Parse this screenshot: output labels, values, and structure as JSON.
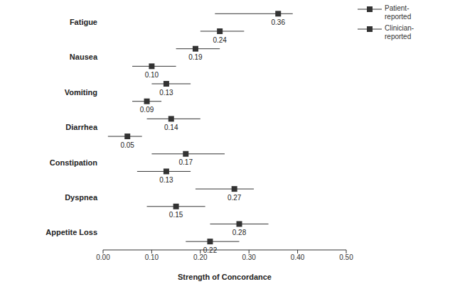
{
  "chart_data": {
    "type": "scatter",
    "xlabel": "Strength of Concordance",
    "categories": [
      "Fatigue",
      "Nausea",
      "Vomiting",
      "Diarrhea",
      "Constipation",
      "Dyspnea",
      "Appetite Loss"
    ],
    "series": [
      {
        "name": "Patient-reported",
        "color": "#333333",
        "marker": "square",
        "values": [
          0.36,
          0.19,
          0.13,
          0.14,
          0.17,
          0.27,
          0.28
        ],
        "value_labels": [
          "0.36",
          "0.19",
          "0.13",
          "0.14",
          "0.17",
          "0.27",
          "0.28"
        ],
        "ci_low": [
          0.23,
          0.15,
          0.1,
          0.09,
          0.1,
          0.19,
          0.22
        ],
        "ci_high": [
          0.39,
          0.24,
          0.18,
          0.2,
          0.25,
          0.31,
          0.34
        ]
      },
      {
        "name": "Clinician-reported",
        "color": "#333333",
        "marker": "square",
        "values": [
          0.24,
          0.1,
          0.09,
          0.05,
          0.13,
          0.15,
          0.22
        ],
        "value_labels": [
          "0.24",
          "0.10",
          "0.09",
          "0.05",
          "0.13",
          "0.15",
          "0.22"
        ],
        "ci_low": [
          0.2,
          0.06,
          0.06,
          0.01,
          0.07,
          0.09,
          0.17
        ],
        "ci_high": [
          0.29,
          0.15,
          0.12,
          0.08,
          0.18,
          0.21,
          0.28
        ]
      }
    ],
    "xlim": [
      0,
      0.5
    ],
    "xticks": [
      {
        "value": 0,
        "label": "0.00"
      },
      {
        "value": 0.1,
        "label": "0.10"
      },
      {
        "value": 0.2,
        "label": "0.20"
      },
      {
        "value": 0.3,
        "label": "0.30"
      },
      {
        "value": 0.4,
        "label": "0.40"
      },
      {
        "value": 0.5,
        "label": "0.50"
      }
    ],
    "grid": false,
    "data_labels": true,
    "legend": "upper right"
  }
}
